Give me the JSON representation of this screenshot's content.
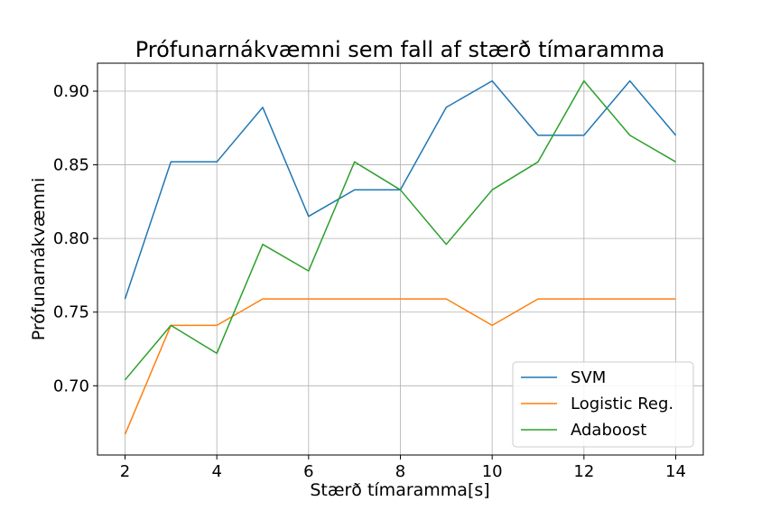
{
  "chart_data": {
    "type": "line",
    "title": "Prófunarnákvæmni sem fall af stærð tímaramma",
    "xlabel": "Stærð tímaramma[s]",
    "ylabel": "Prófunarnákvæmni",
    "x": [
      2,
      3,
      4,
      5,
      6,
      7,
      8,
      9,
      10,
      11,
      12,
      13,
      14
    ],
    "xlim": [
      1.4,
      14.6
    ],
    "ylim": [
      0.653,
      0.919
    ],
    "xticks": [
      "2",
      "4",
      "6",
      "8",
      "10",
      "12",
      "14"
    ],
    "yticks": [
      "0.70",
      "0.75",
      "0.80",
      "0.85",
      "0.90"
    ],
    "grid": true,
    "legend_position": "lower-right",
    "series": [
      {
        "name": "SVM",
        "color": "#1f77b4",
        "values": [
          0.759,
          0.852,
          0.852,
          0.889,
          0.815,
          0.833,
          0.833,
          0.889,
          0.907,
          0.87,
          0.87,
          0.907,
          0.87
        ]
      },
      {
        "name": "Logistic Reg.",
        "color": "#ff7f0e",
        "values": [
          0.667,
          0.741,
          0.741,
          0.759,
          0.759,
          0.759,
          0.759,
          0.759,
          0.741,
          0.759,
          0.759,
          0.759,
          0.759
        ]
      },
      {
        "name": "Adaboost",
        "color": "#2ca02c",
        "values": [
          0.704,
          0.741,
          0.722,
          0.796,
          0.778,
          0.852,
          0.833,
          0.796,
          0.833,
          0.852,
          0.907,
          0.87,
          0.852
        ]
      }
    ]
  }
}
